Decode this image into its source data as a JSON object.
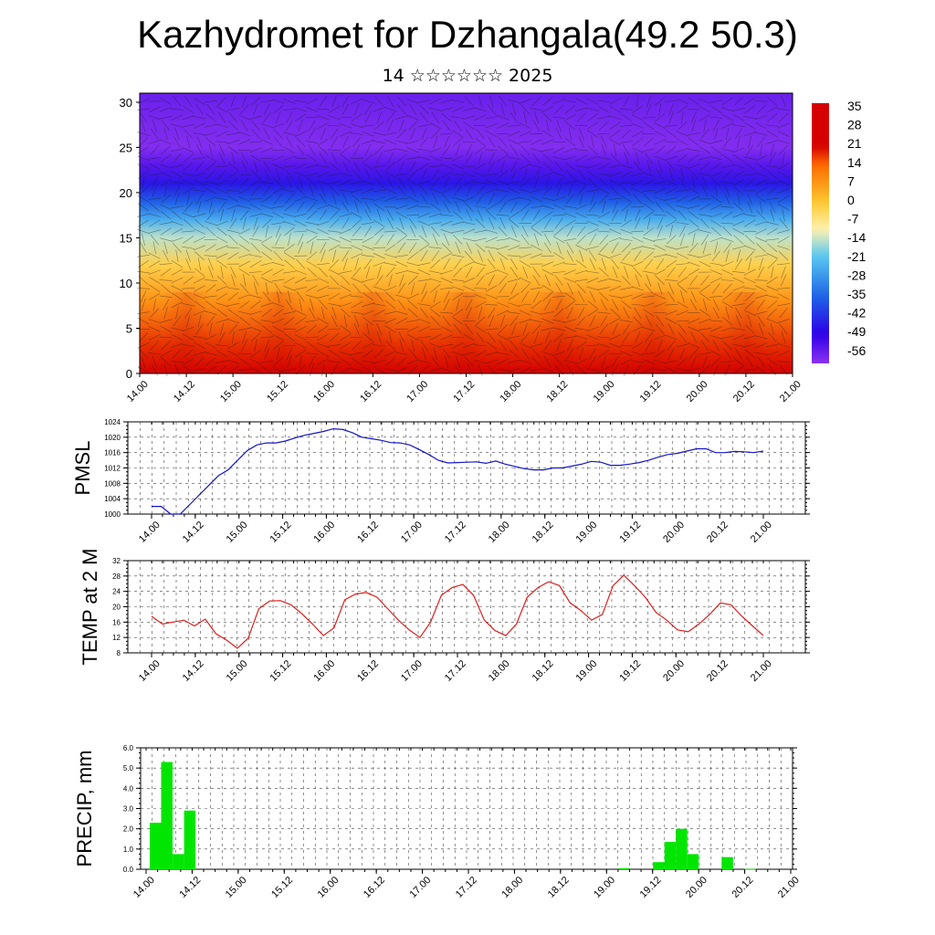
{
  "title": "Kazhydromet for Dzhangala(49.2 50.3)",
  "subtitle": "14 ☆☆☆☆☆☆ 2025",
  "time_labels": [
    "14.00",
    "14.12",
    "15.00",
    "15.12",
    "16.00",
    "16.12",
    "17.00",
    "17.12",
    "18.00",
    "18.12",
    "19.00",
    "19.12",
    "20.00",
    "20.12",
    "21.00"
  ],
  "chart_data": [
    {
      "type": "heatmap",
      "ylim": [
        0,
        31
      ],
      "yticks": [
        0,
        5,
        10,
        15,
        20,
        25,
        30
      ],
      "colorbar_labels": [
        "35",
        "28",
        "21",
        "14",
        "7",
        "0",
        "-7",
        "-14",
        "-21",
        "-28",
        "-35",
        "-42",
        "-49",
        "-56"
      ],
      "colorbar_range": [
        -60,
        37
      ],
      "temperature_profile": [
        {
          "level": 0,
          "t": 22
        },
        {
          "level": 3,
          "t": 18
        },
        {
          "level": 8,
          "t": 8
        },
        {
          "level": 12,
          "t": -2
        },
        {
          "level": 15,
          "t": -14
        },
        {
          "level": 17,
          "t": -24
        },
        {
          "level": 19,
          "t": -36
        },
        {
          "level": 21,
          "t": -46
        },
        {
          "level": 23,
          "t": -54
        },
        {
          "level": 25,
          "t": -59
        },
        {
          "level": 27,
          "t": -58
        },
        {
          "level": 31,
          "t": -56
        }
      ],
      "colors": {
        "warm_max": "#d40000",
        "warm": "#ff6a00",
        "mild": "#ffc832",
        "neutral": "#fff2b0",
        "cool": "#5ac8f0",
        "cold": "#1e64e6",
        "very_cold": "#2d00e6",
        "coldest": "#8c32f0"
      }
    },
    {
      "type": "line",
      "ylabel": "PMSL",
      "ylim": [
        1000,
        1024
      ],
      "yticks": [
        1000,
        1004,
        1008,
        1012,
        1016,
        1020,
        1024
      ],
      "color": "#1414c8",
      "values": [
        1002,
        1002,
        1000,
        1000,
        1002.5,
        1005,
        1007.5,
        1010,
        1011.5,
        1014,
        1016.5,
        1018,
        1018.5,
        1018.5,
        1019,
        1019.8,
        1020.5,
        1021,
        1021.5,
        1022.2,
        1022,
        1021.2,
        1020,
        1019.6,
        1019.2,
        1018.6,
        1018.5,
        1018,
        1016.8,
        1015.5,
        1014,
        1013.3,
        1013.4,
        1013.5,
        1013.6,
        1013.2,
        1013.8,
        1013,
        1012.4,
        1011.8,
        1011.5,
        1011.5,
        1012,
        1012,
        1012.5,
        1013,
        1013.7,
        1013.5,
        1012.7,
        1012.7,
        1013,
        1013.4,
        1014,
        1014.8,
        1015.5,
        1015.8,
        1016.4,
        1017,
        1017,
        1016,
        1016,
        1016.3,
        1016.2,
        1016,
        1016.4
      ]
    },
    {
      "type": "line",
      "ylabel": "TEMP at 2 M",
      "ylim": [
        8,
        32
      ],
      "yticks": [
        8,
        12,
        16,
        20,
        24,
        28,
        32
      ],
      "color": "#dc1e1e",
      "values": [
        17.5,
        15.5,
        16,
        16.5,
        15,
        16.8,
        13,
        11.3,
        9.2,
        11.8,
        19.5,
        21.5,
        21.6,
        20.5,
        18.2,
        15.5,
        12.5,
        14.5,
        21.8,
        23.3,
        23.7,
        22.5,
        19.5,
        16.5,
        14,
        12,
        16,
        23,
        25,
        25.8,
        23,
        16.5,
        13.8,
        12.5,
        15.5,
        22.5,
        25,
        26.5,
        25.5,
        21,
        19,
        16.5,
        18,
        25.5,
        28.2,
        25.5,
        22.5,
        18.5,
        16.5,
        14,
        13.5,
        15.5,
        18,
        21,
        20.5,
        17.5,
        15,
        12.5
      ]
    },
    {
      "type": "bar",
      "ylabel": "PRECIP, mm",
      "ylim": [
        0,
        6
      ],
      "ytick_labels": [
        "0.0",
        "1.0",
        "2.0",
        "3.0",
        "4.0",
        "5.0",
        "6.0"
      ],
      "color": "#00e600",
      "bars": [
        {
          "x": 1,
          "value": 2.3
        },
        {
          "x": 2,
          "value": 5.3
        },
        {
          "x": 3,
          "value": 0.75
        },
        {
          "x": 4,
          "value": 2.9
        },
        {
          "x": 42,
          "value": 0.05
        },
        {
          "x": 45,
          "value": 0.35
        },
        {
          "x": 46,
          "value": 1.35
        },
        {
          "x": 47,
          "value": 2.0
        },
        {
          "x": 48,
          "value": 0.75
        },
        {
          "x": 51,
          "value": 0.6
        },
        {
          "x": 53,
          "value": 0.02
        }
      ]
    }
  ]
}
